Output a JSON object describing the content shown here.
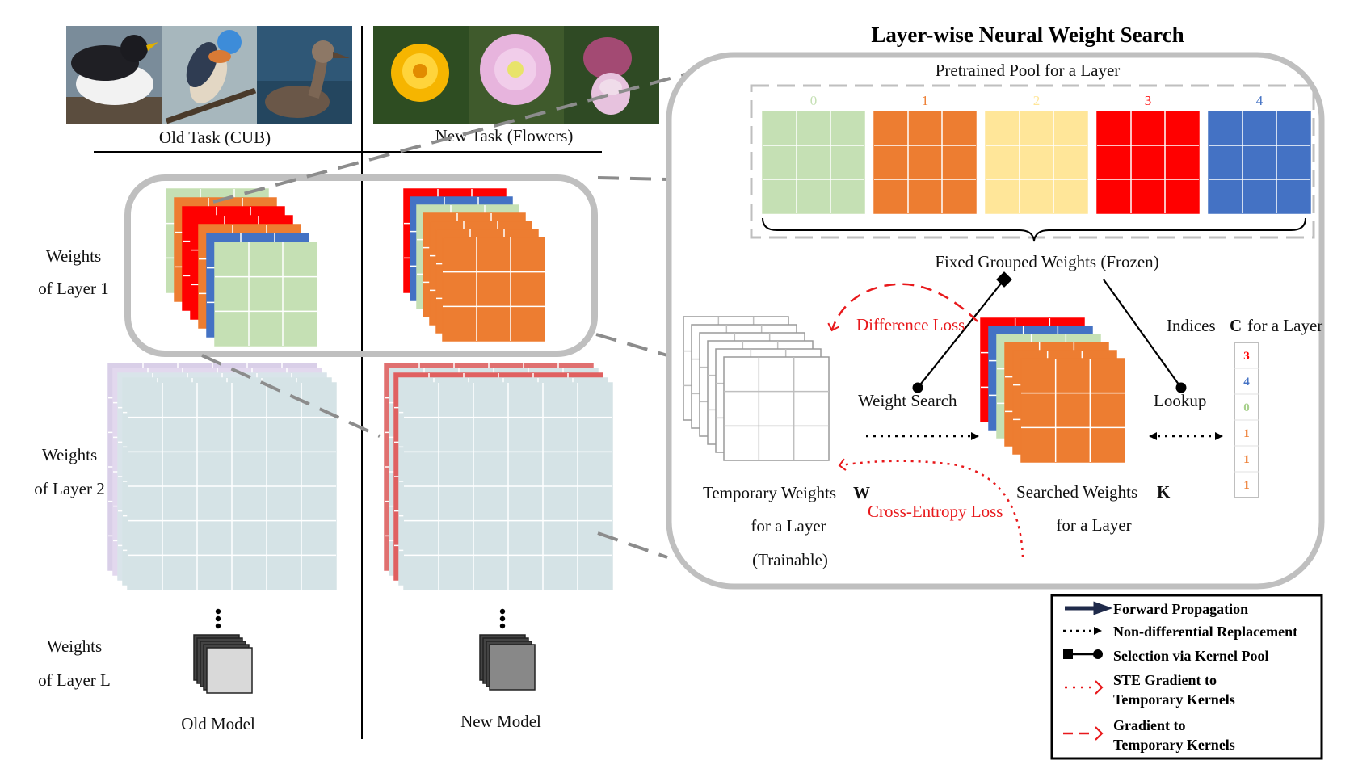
{
  "title": "Layer-wise Neural Weight Search",
  "tasks": {
    "old": "Old  Task (CUB)",
    "new": "New Task (Flowers)"
  },
  "photos": {
    "birds": [
      "bird-photo-1",
      "bird-photo-2",
      "bird-photo-3"
    ],
    "flowers": [
      "flower-photo-1",
      "flower-photo-2",
      "flower-photo-3"
    ]
  },
  "layers": {
    "layer1": [
      "Weights",
      "of Layer 1"
    ],
    "layer2": [
      "Weights",
      "of Layer 2"
    ],
    "layerL": [
      "Weights",
      "of Layer L"
    ]
  },
  "models": {
    "old": "Old Model",
    "new": "New Model"
  },
  "pool": {
    "label": "Pretrained Pool for a Layer",
    "groups": [
      {
        "index": "0",
        "color": "#c5e0b4"
      },
      {
        "index": "1",
        "color": "#ed7d31"
      },
      {
        "index": "2",
        "color": "#ffe699"
      },
      {
        "index": "3",
        "color": "#ff0000"
      },
      {
        "index": "4",
        "color": "#4472c4"
      }
    ],
    "fixed_label": "Fixed  Grouped Weights (Frozen)"
  },
  "search": {
    "difference_loss": "Difference Loss",
    "weight_search": "Weight Search",
    "lookup": "Lookup",
    "cross_entropy_loss": "Cross-Entropy Loss",
    "temporary": [
      "Temporary Weights",
      "W",
      "for a Layer",
      "(Trainable)"
    ],
    "searched": [
      "Searched Weights",
      "K",
      "for a Layer"
    ],
    "indices_label": [
      "Indices",
      "C",
      "for a Layer"
    ],
    "indices": [
      {
        "value": "3",
        "color": "#ff0000"
      },
      {
        "value": "4",
        "color": "#4472c4"
      },
      {
        "value": "0",
        "color": "#a9d18e"
      },
      {
        "value": "1",
        "color": "#ed7d31"
      },
      {
        "value": "1",
        "color": "#ed7d31"
      },
      {
        "value": "1",
        "color": "#ed7d31"
      }
    ]
  },
  "legend": [
    {
      "symbol": "forward-arrow",
      "label": [
        "Forward Propagation"
      ]
    },
    {
      "symbol": "dotted-arrow",
      "label": [
        "Non-differential Replacement"
      ]
    },
    {
      "symbol": "square-dot-line",
      "label": [
        "Selection via Kernel Pool"
      ]
    },
    {
      "symbol": "red-dotted-arrow",
      "label": [
        "STE  Gradient to",
        "Temporary Kernels"
      ]
    },
    {
      "symbol": "red-dashed-arrow",
      "label": [
        "Gradient to",
        "Temporary Kernels"
      ]
    }
  ],
  "colors": {
    "green": "#c5e0b4",
    "orange": "#ed7d31",
    "yellow": "#ffe699",
    "red": "#ff0000",
    "blue": "#4472c4",
    "light_blue_grey": "#d5e3e6",
    "lavender": "#d9cfe8",
    "grey_border": "#bfbfbf"
  }
}
